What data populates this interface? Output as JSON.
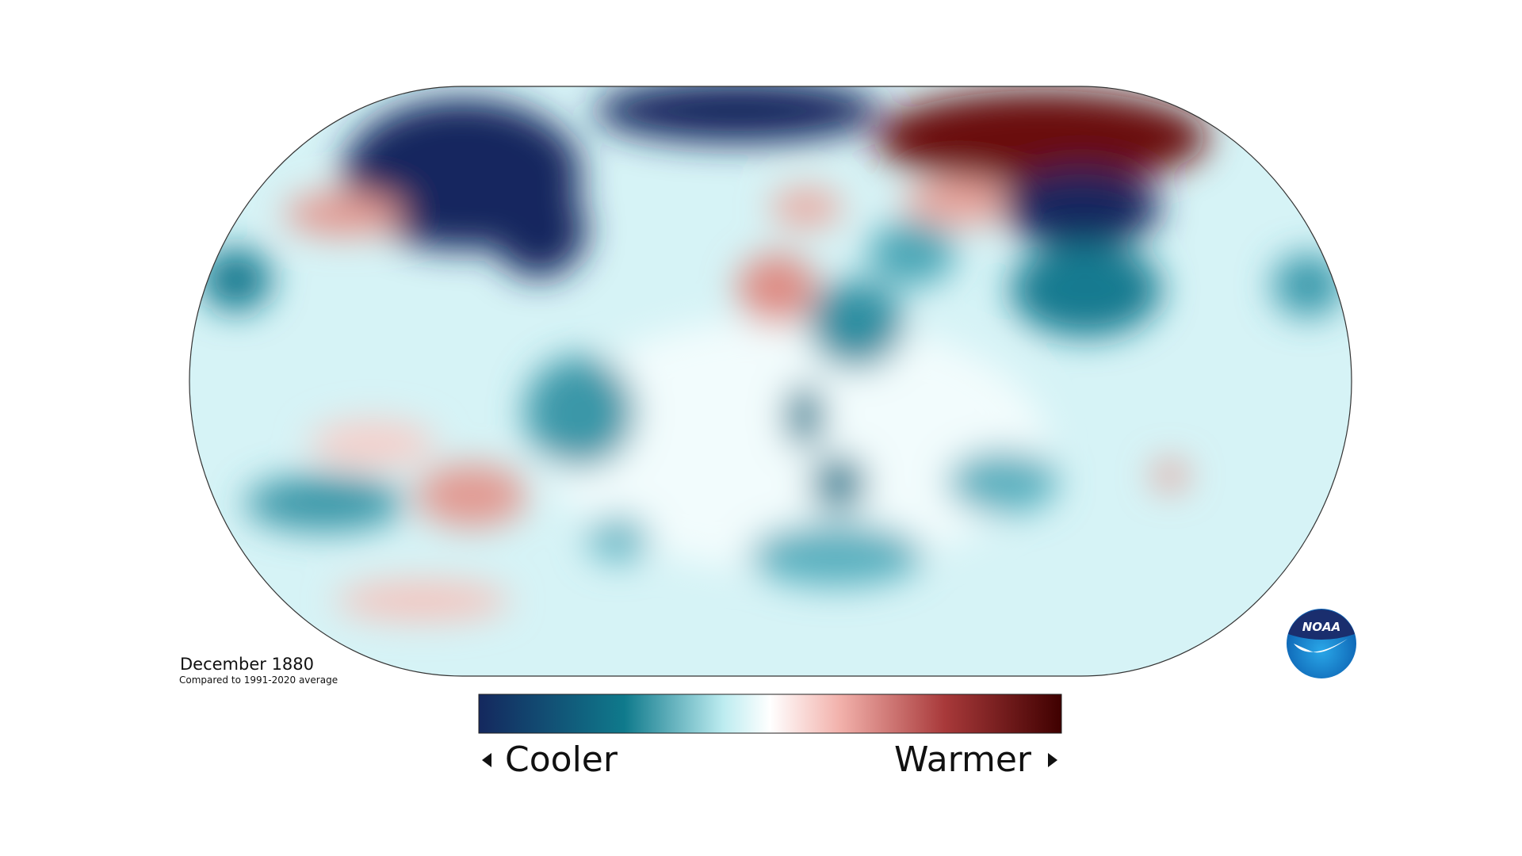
{
  "map": {
    "title": "December 1880",
    "subtitle": "Compared to 1991-2020 average",
    "legend": {
      "low_label": "Cooler",
      "high_label": "Warmer"
    }
  },
  "logo": {
    "text": "NOAA"
  }
}
